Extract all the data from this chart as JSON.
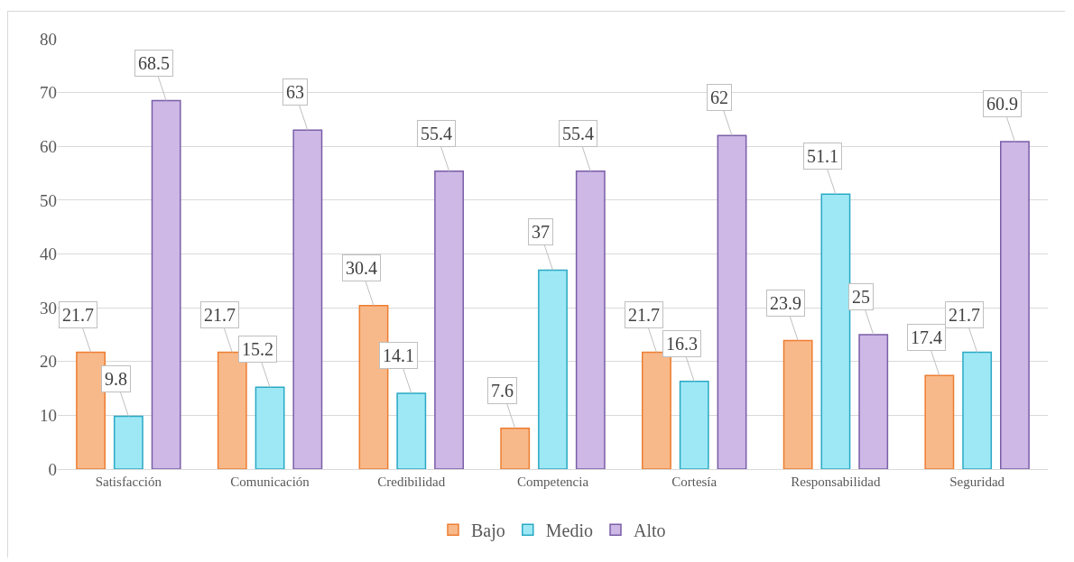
{
  "chart_data": {
    "type": "bar",
    "categories": [
      "Satisfacción",
      "Comunicación",
      "Credibilidad",
      "Competencia",
      "Cortesía",
      "Responsabilidad",
      "Seguridad"
    ],
    "series": [
      {
        "name": "Bajo",
        "color": "#f8b98a",
        "values": [
          21.7,
          21.7,
          30.4,
          7.6,
          21.7,
          23.9,
          17.4
        ]
      },
      {
        "name": "Medio",
        "color": "#9ee8f6",
        "values": [
          9.8,
          15.2,
          14.1,
          37,
          16.3,
          51.1,
          21.7
        ]
      },
      {
        "name": "Alto",
        "color": "#cdb8e6",
        "values": [
          68.5,
          63,
          55.4,
          55.4,
          62,
          25,
          60.9
        ]
      }
    ],
    "ylim": [
      0,
      80
    ],
    "yticks": [
      0,
      10,
      20,
      30,
      40,
      50,
      60,
      70,
      80
    ],
    "grid": "y",
    "legend": "bottom",
    "data_labels": true
  }
}
